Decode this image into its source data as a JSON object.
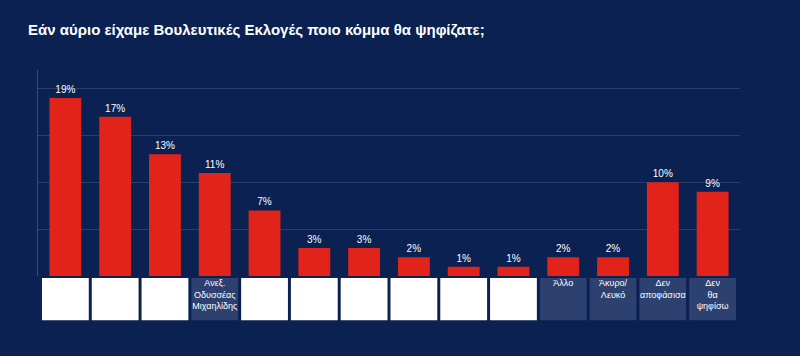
{
  "chart_data": {
    "type": "bar",
    "title": "Εάν αύριο είχαμε Βουλευτικές Εκλογές ποιο κόμμα θα ψηφίζατε;",
    "categories": [
      null,
      null,
      null,
      "Ανεξ. Οδυσσέας Μιχαηλίδης",
      null,
      null,
      null,
      null,
      null,
      null,
      "Άλλο",
      "Άκυρο/ Λευκό",
      "Δεν αποφάσισα",
      "Δεν θα ψηφίσω"
    ],
    "values": [
      19,
      17,
      13,
      11,
      7,
      3,
      3,
      2,
      1,
      1,
      2,
      2,
      10,
      9
    ],
    "value_labels": [
      "19%",
      "17%",
      "13%",
      "11%",
      "7%",
      "3%",
      "3%",
      "2%",
      "1%",
      "1%",
      "2%",
      "2%",
      "10%",
      "9%"
    ],
    "color": "#e2231a",
    "ylim": [
      0,
      22
    ],
    "yticks": [
      0,
      5,
      10,
      15,
      20
    ],
    "grid": true,
    "data_labels": true,
    "tick_labels": "x"
  }
}
